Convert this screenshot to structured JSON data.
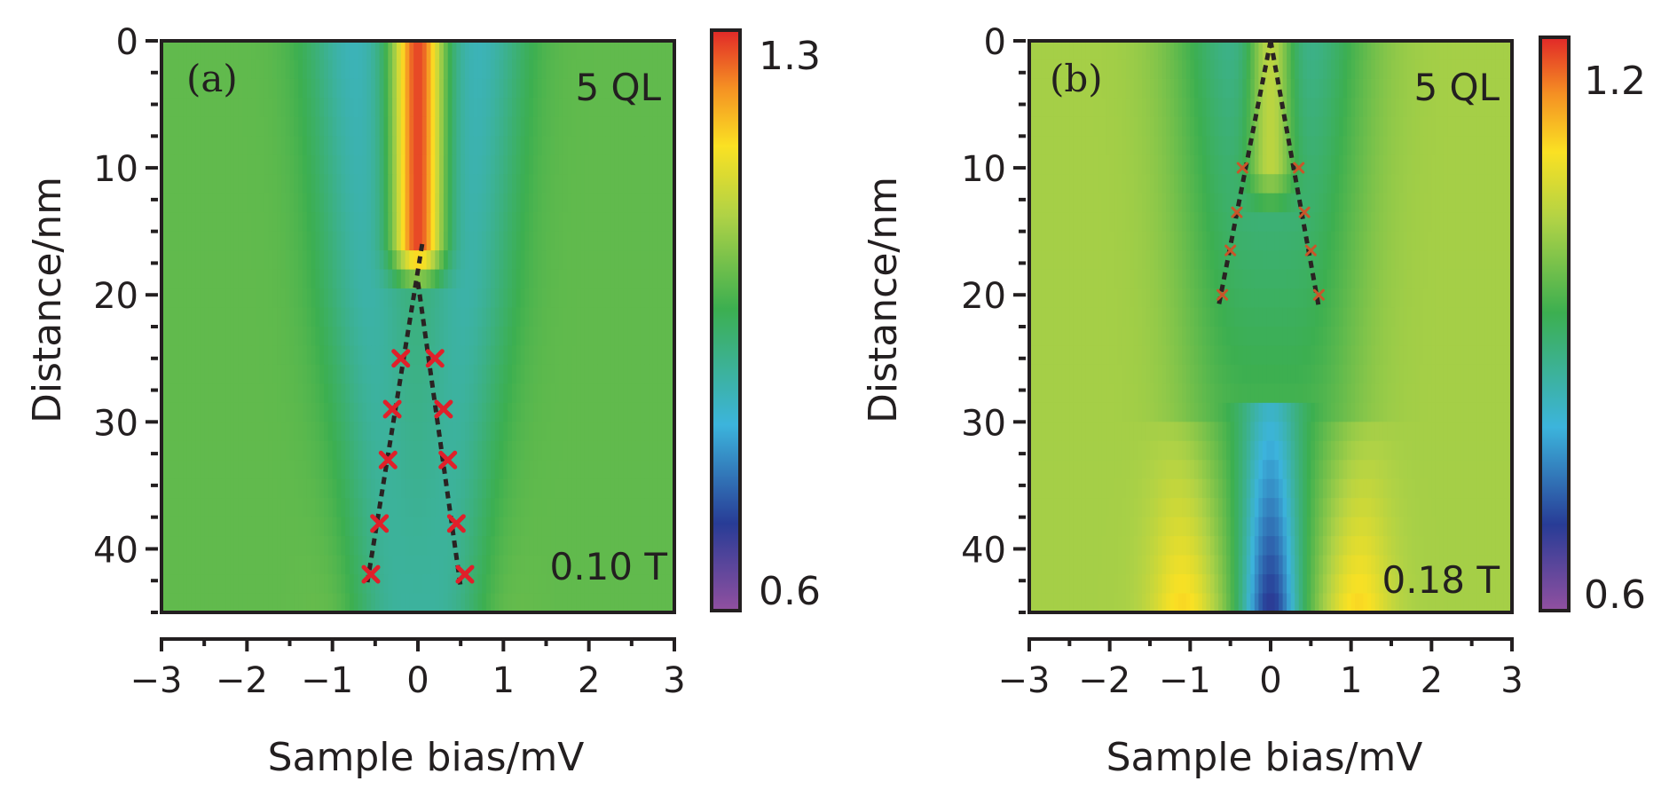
{
  "chart_data": [
    {
      "type": "heatmap",
      "panel_label": "(a)",
      "sample_label": "5 QL",
      "field_label": "0.10 T",
      "xlabel": "Sample bias/mV",
      "ylabel": "Distance/nm",
      "xlim": [
        -3,
        3
      ],
      "ylim": [
        0,
        45
      ],
      "x_ticks": [
        -3,
        -2,
        -1,
        0,
        1,
        2,
        3
      ],
      "x_tick_labels": [
        "−3",
        "−2",
        "−1",
        "0",
        "1",
        "2",
        "3"
      ],
      "y_ticks": [
        0,
        10,
        20,
        30,
        40
      ],
      "y_tick_labels": [
        "0",
        "10",
        "20",
        "30",
        "40"
      ],
      "colorbar": {
        "min": 0.6,
        "max": 1.3,
        "min_label": "0.6",
        "max_label": "1.3"
      },
      "zero_bias_peak": {
        "value": 1.28,
        "y_from": 0,
        "y_to": 16,
        "width_mV": 0.2
      },
      "valleys": [
        {
          "y": [
            0,
            45
          ],
          "x_center": [
            -0.75,
            -0.4
          ],
          "width": [
            0.4,
            0.38
          ],
          "depth": [
            0.14,
            0.1
          ]
        },
        {
          "y": [
            0,
            45
          ],
          "x_center": [
            0.7,
            0.4
          ],
          "width": [
            0.4,
            0.38
          ],
          "depth": [
            0.14,
            0.1
          ]
        }
      ],
      "side_bumps": [
        {
          "y": [
            20,
            45
          ],
          "x_center": [
            -0.9,
            -0.85
          ],
          "width": 0.3,
          "amp": [
            0.0,
            0.03
          ]
        },
        {
          "y": [
            20,
            45
          ],
          "x_center": [
            0.9,
            0.85
          ],
          "width": 0.3,
          "amp": [
            0.0,
            0.03
          ]
        }
      ],
      "baseline": 1.0,
      "marker_color": "#e0202a",
      "markers": [
        {
          "x": -0.2,
          "y": 25
        },
        {
          "x": 0.2,
          "y": 25
        },
        {
          "x": -0.3,
          "y": 29
        },
        {
          "x": 0.3,
          "y": 29
        },
        {
          "x": -0.35,
          "y": 33
        },
        {
          "x": 0.35,
          "y": 33
        },
        {
          "x": -0.45,
          "y": 38
        },
        {
          "x": 0.45,
          "y": 38
        },
        {
          "x": -0.55,
          "y": 42
        },
        {
          "x": 0.55,
          "y": 42
        }
      ],
      "guide_lines": [
        {
          "x": [
            0.05,
            -0.6
          ],
          "y": [
            16,
            43
          ]
        },
        {
          "x": [
            0.0,
            0.5
          ],
          "y": [
            19,
            43
          ]
        }
      ]
    },
    {
      "type": "heatmap",
      "panel_label": "(b)",
      "sample_label": "5 QL",
      "field_label": "0.18 T",
      "xlabel": "Sample bias/mV",
      "ylabel": "Distance/nm",
      "xlim": [
        -3,
        3
      ],
      "ylim": [
        0,
        45
      ],
      "x_ticks": [
        -3,
        -2,
        -1,
        0,
        1,
        2,
        3
      ],
      "x_tick_labels": [
        "−3",
        "−2",
        "−1",
        "0",
        "1",
        "2",
        "3"
      ],
      "y_ticks": [
        0,
        10,
        20,
        30,
        40
      ],
      "y_tick_labels": [
        "0",
        "10",
        "20",
        "30",
        "40"
      ],
      "colorbar": {
        "min": 0.6,
        "max": 1.2,
        "min_label": "0.6",
        "max_label": "1.2"
      },
      "zero_bias_peak": {
        "value": 1.02,
        "y_from": 0,
        "y_to": 10,
        "width_mV": 0.2
      },
      "zero_bias_dip": {
        "y_from": 28,
        "y_to": 45,
        "value_start": 0.82,
        "value_end": 0.68,
        "width_mV": 0.25
      },
      "valleys": [
        {
          "y": [
            0,
            45
          ],
          "x_center": [
            -0.5,
            -0.5
          ],
          "width": [
            0.55,
            0.45
          ],
          "depth": [
            0.12,
            0.04
          ]
        },
        {
          "y": [
            0,
            45
          ],
          "x_center": [
            0.5,
            0.5
          ],
          "width": [
            0.55,
            0.45
          ],
          "depth": [
            0.12,
            0.04
          ]
        }
      ],
      "side_bumps": [
        {
          "y": [
            30,
            45
          ],
          "x_center": [
            -1.05,
            -1.05
          ],
          "width": 0.3,
          "amp": [
            0.02,
            0.11
          ]
        },
        {
          "y": [
            30,
            45
          ],
          "x_center": [
            1.05,
            1.05
          ],
          "width": 0.3,
          "amp": [
            0.02,
            0.11
          ]
        }
      ],
      "baseline": 1.0,
      "marker_color": "#c8562a",
      "markers": [
        {
          "x": -0.35,
          "y": 10
        },
        {
          "x": 0.35,
          "y": 10
        },
        {
          "x": -0.42,
          "y": 13.5
        },
        {
          "x": 0.42,
          "y": 13.5
        },
        {
          "x": -0.5,
          "y": 16.5
        },
        {
          "x": 0.5,
          "y": 16.5
        },
        {
          "x": -0.6,
          "y": 20
        },
        {
          "x": 0.6,
          "y": 20
        }
      ],
      "guide_lines": [
        {
          "x": [
            0.0,
            -0.65
          ],
          "y": [
            0,
            21
          ]
        },
        {
          "x": [
            0.0,
            0.6
          ],
          "y": [
            0,
            21
          ]
        }
      ]
    }
  ]
}
